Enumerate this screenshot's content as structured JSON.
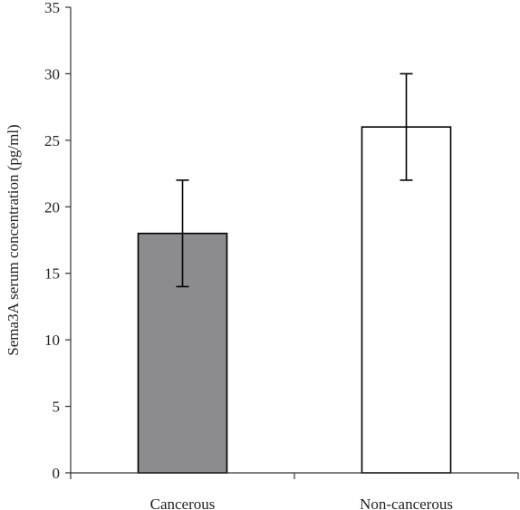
{
  "chart_data": {
    "type": "bar",
    "ylabel": "Sema3A serum concentration (pg/ml)",
    "xlabel": "",
    "ylim": [
      0,
      35
    ],
    "yticks": [
      0,
      5,
      10,
      15,
      20,
      25,
      30,
      35
    ],
    "categories": [
      "Cancerous",
      "Non-cancerous"
    ],
    "values": [
      18,
      26
    ],
    "error": [
      4,
      4
    ],
    "colors": [
      "#8c8c8f",
      "#ffffff"
    ],
    "grid": false,
    "legend": "none"
  }
}
